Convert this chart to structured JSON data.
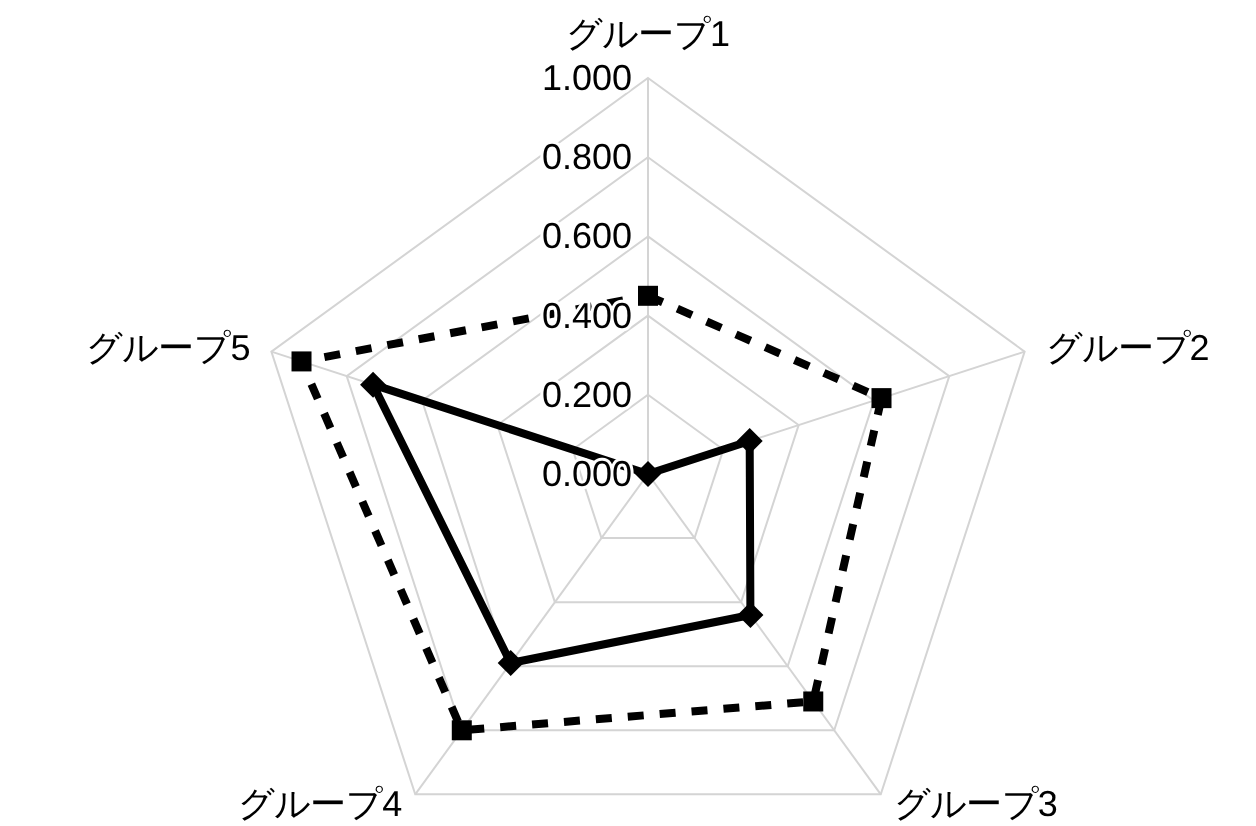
{
  "chart_data": {
    "type": "radar",
    "categories": [
      "グループ1",
      "グループ2",
      "グループ3",
      "グループ4",
      "グループ5"
    ],
    "series": [
      {
        "color": "#000000",
        "values": [
          0.45,
          0.62,
          0.71,
          0.8,
          0.92
        ],
        "line_style": "dashed",
        "marker": "square"
      },
      {
        "color": "#000000",
        "values": [
          0,
          0.27,
          0.44,
          0.59,
          0.73
        ],
        "line_style": "solid",
        "marker": "diamond"
      }
    ],
    "ylim": [
      0,
      1
    ],
    "yticks": [
      {
        "value": 0,
        "label": "0.000"
      },
      {
        "value": 0.2,
        "label": "0.200"
      },
      {
        "value": 0.4,
        "label": "0.400"
      },
      {
        "value": 0.6,
        "label": "0.600"
      },
      {
        "value": 0.8,
        "label": "0.800"
      },
      {
        "value": 1,
        "label": "1.000"
      }
    ],
    "grid": true
  }
}
